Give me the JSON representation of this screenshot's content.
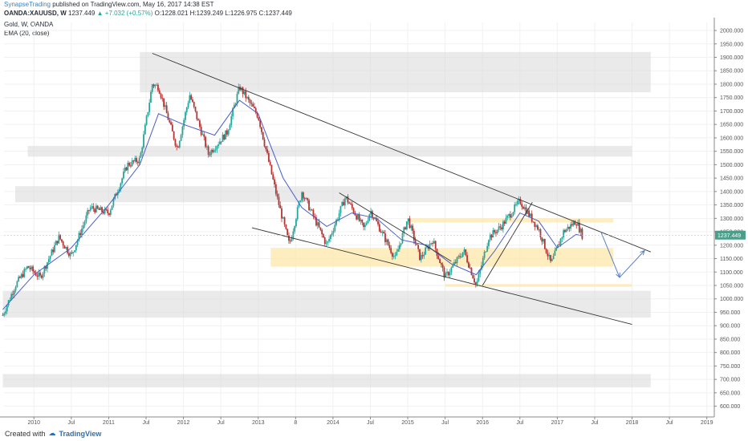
{
  "header": {
    "publisher": "SynapseTrading",
    "published_on": "published on TradingView.com, May 16, 2017 14:38 EST",
    "symbol": "OANDA:XAUUSD, W",
    "last": "1237.449",
    "change": "▲ +7.032 (+0.57%)",
    "ohlc": "O:1228.021 H:1239.249 L:1226.975 C:1237.449",
    "instrument": "Gold, W, OANDA",
    "indicator": "EMA (20, close)"
  },
  "footer": {
    "created_with": "Created with",
    "brand": "TradingView"
  },
  "colors": {
    "up": "#26a69a",
    "down": "#b53535",
    "ema": "#4a5dc8",
    "zone_gray": "#d9d9d9",
    "zone_yellow": "#fde6a4",
    "price_tag": "#4a9e8a",
    "forecast": "#5b7fc0",
    "trendline": "#333333"
  },
  "chart_data": {
    "type": "candlestick",
    "timeframe": "W",
    "ylim": [
      560,
      2030
    ],
    "y_ticks": [
      600,
      650,
      700,
      750,
      800,
      850,
      900,
      950,
      1000,
      1050,
      1100,
      1150,
      1200,
      1250,
      1300,
      1350,
      1400,
      1450,
      1500,
      1550,
      1600,
      1650,
      1700,
      1750,
      1800,
      1850,
      1900,
      1950,
      2000
    ],
    "y_tick_labels": [
      "600.000",
      "650.000",
      "700.000",
      "750.000",
      "800.000",
      "850.000",
      "900.000",
      "950.000",
      "1000.000",
      "1050.000",
      "1100.000",
      "1150.000",
      "1200.000",
      "1250.000",
      "1300.000",
      "1350.000",
      "1400.000",
      "1450.000",
      "1500.000",
      "1550.000",
      "1600.000",
      "1650.000",
      "1700.000",
      "1750.000",
      "1800.000",
      "1850.000",
      "1900.000",
      "1950.000",
      "2000.000"
    ],
    "x_ticks": [
      {
        "date": "2010-01",
        "label": "2010"
      },
      {
        "date": "2010-07",
        "label": "Jul"
      },
      {
        "date": "2011-01",
        "label": "2011"
      },
      {
        "date": "2011-07",
        "label": "Jul"
      },
      {
        "date": "2012-01",
        "label": "2012"
      },
      {
        "date": "2012-07",
        "label": "Jul"
      },
      {
        "date": "2013-01",
        "label": "2013"
      },
      {
        "date": "2013-07",
        "label": "8"
      },
      {
        "date": "2014-01",
        "label": "2014"
      },
      {
        "date": "2014-07",
        "label": "Jul"
      },
      {
        "date": "2015-01",
        "label": "2015"
      },
      {
        "date": "2015-07",
        "label": "Jul"
      },
      {
        "date": "2016-01",
        "label": "2016"
      },
      {
        "date": "2016-07",
        "label": "Jul"
      },
      {
        "date": "2017-01",
        "label": "2017"
      },
      {
        "date": "2017-07",
        "label": "Jul"
      },
      {
        "date": "2018-01",
        "label": "2018"
      },
      {
        "date": "2018-07",
        "label": "Jul"
      },
      {
        "date": "2019-01",
        "label": "2019"
      }
    ],
    "price_path": [
      [
        "2009-08",
        940
      ],
      [
        "2009-10",
        1050
      ],
      [
        "2009-12",
        1120
      ],
      [
        "2010-02",
        1080
      ],
      [
        "2010-05",
        1230
      ],
      [
        "2010-07",
        1160
      ],
      [
        "2010-10",
        1340
      ],
      [
        "2011-01",
        1320
      ],
      [
        "2011-04",
        1500
      ],
      [
        "2011-06",
        1520
      ],
      [
        "2011-08",
        1800
      ],
      [
        "2011-09",
        1790
      ],
      [
        "2011-12",
        1560
      ],
      [
        "2012-02",
        1760
      ],
      [
        "2012-05",
        1540
      ],
      [
        "2012-08",
        1620
      ],
      [
        "2012-10",
        1790
      ],
      [
        "2013-01",
        1680
      ],
      [
        "2013-04",
        1380
      ],
      [
        "2013-06",
        1200
      ],
      [
        "2013-08",
        1400
      ],
      [
        "2013-12",
        1200
      ],
      [
        "2014-03",
        1380
      ],
      [
        "2014-06",
        1260
      ],
      [
        "2014-07",
        1330
      ],
      [
        "2014-11",
        1150
      ],
      [
        "2015-01",
        1300
      ],
      [
        "2015-03",
        1150
      ],
      [
        "2015-05",
        1220
      ],
      [
        "2015-07",
        1080
      ],
      [
        "2015-10",
        1180
      ],
      [
        "2015-12",
        1050
      ],
      [
        "2016-02",
        1230
      ],
      [
        "2016-04",
        1270
      ],
      [
        "2016-07",
        1365
      ],
      [
        "2016-10",
        1260
      ],
      [
        "2016-12",
        1130
      ],
      [
        "2017-02",
        1250
      ],
      [
        "2017-04",
        1290
      ],
      [
        "2017-05",
        1237
      ]
    ],
    "ema_path": [
      [
        "2009-08",
        960
      ],
      [
        "2010-01",
        1090
      ],
      [
        "2010-07",
        1190
      ],
      [
        "2011-01",
        1350
      ],
      [
        "2011-06",
        1500
      ],
      [
        "2011-09",
        1690
      ],
      [
        "2012-01",
        1650
      ],
      [
        "2012-06",
        1610
      ],
      [
        "2012-10",
        1740
      ],
      [
        "2013-01",
        1690
      ],
      [
        "2013-05",
        1450
      ],
      [
        "2013-08",
        1340
      ],
      [
        "2013-12",
        1270
      ],
      [
        "2014-04",
        1320
      ],
      [
        "2014-08",
        1300
      ],
      [
        "2014-12",
        1220
      ],
      [
        "2015-04",
        1200
      ],
      [
        "2015-08",
        1130
      ],
      [
        "2015-12",
        1090
      ],
      [
        "2016-03",
        1180
      ],
      [
        "2016-07",
        1320
      ],
      [
        "2016-10",
        1290
      ],
      [
        "2017-01",
        1190
      ],
      [
        "2017-04",
        1240
      ],
      [
        "2017-05",
        1235
      ]
    ],
    "last_price_label": "1237.449",
    "zones": [
      {
        "x0": "2011-06",
        "x1": "2018-04",
        "y0": 1770,
        "y1": 1920,
        "color": "gray"
      },
      {
        "x0": "2009-12",
        "x1": "2018-01",
        "y0": 1530,
        "y1": 1570,
        "color": "gray"
      },
      {
        "x0": "2009-10",
        "x1": "2018-01",
        "y0": 1360,
        "y1": 1420,
        "color": "gray"
      },
      {
        "x0": "2009-08",
        "x1": "2018-04",
        "y0": 930,
        "y1": 1030,
        "color": "gray"
      },
      {
        "x0": "2009-08",
        "x1": "2018-04",
        "y0": 670,
        "y1": 720,
        "color": "gray"
      },
      {
        "x0": "2013-03",
        "x1": "2017-10",
        "y0": 1120,
        "y1": 1190,
        "color": "yellow"
      },
      {
        "x0": "2015-01",
        "x1": "2017-10",
        "y0": 1285,
        "y1": 1300,
        "color": "yellow"
      },
      {
        "x0": "2015-07",
        "x1": "2018-01",
        "y0": 1045,
        "y1": 1055,
        "color": "yellow"
      }
    ],
    "trendlines": [
      {
        "x0": "2011-08",
        "y0": 1915,
        "x1": "2018-04",
        "y1": 1175
      },
      {
        "x0": "2012-12",
        "y0": 1265,
        "x1": "2018-01",
        "y1": 905
      },
      {
        "x0": "2014-02",
        "y0": 1395,
        "x1": "2015-08",
        "y1": 1140
      },
      {
        "x0": "2016-01",
        "y0": 1050,
        "x1": "2016-09",
        "y1": 1360
      }
    ],
    "forecast": [
      [
        "2017-08",
        1250
      ],
      [
        "2017-11",
        1080
      ],
      [
        "2018-03",
        1180
      ]
    ]
  }
}
